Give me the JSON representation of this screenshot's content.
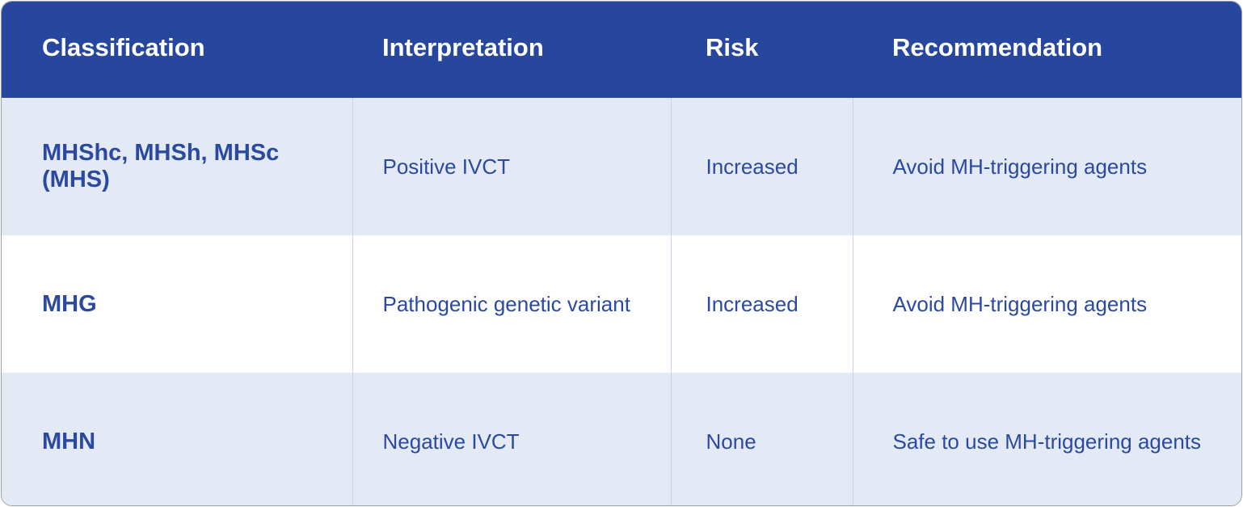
{
  "table": {
    "columns": [
      "Classification",
      "Interpretation",
      "Risk",
      "Recommendation"
    ],
    "rows": [
      [
        "MHShc, MHSh, MHSc (MHS)",
        "Positive IVCT",
        "Increased",
        "Avoid MH-triggering agents"
      ],
      [
        "MHG",
        "Pathogenic genetic variant",
        "Increased",
        "Avoid MH-triggering agents"
      ],
      [
        "MHN",
        "Negative IVCT",
        "None",
        "Safe to use MH-triggering agents"
      ]
    ]
  }
}
